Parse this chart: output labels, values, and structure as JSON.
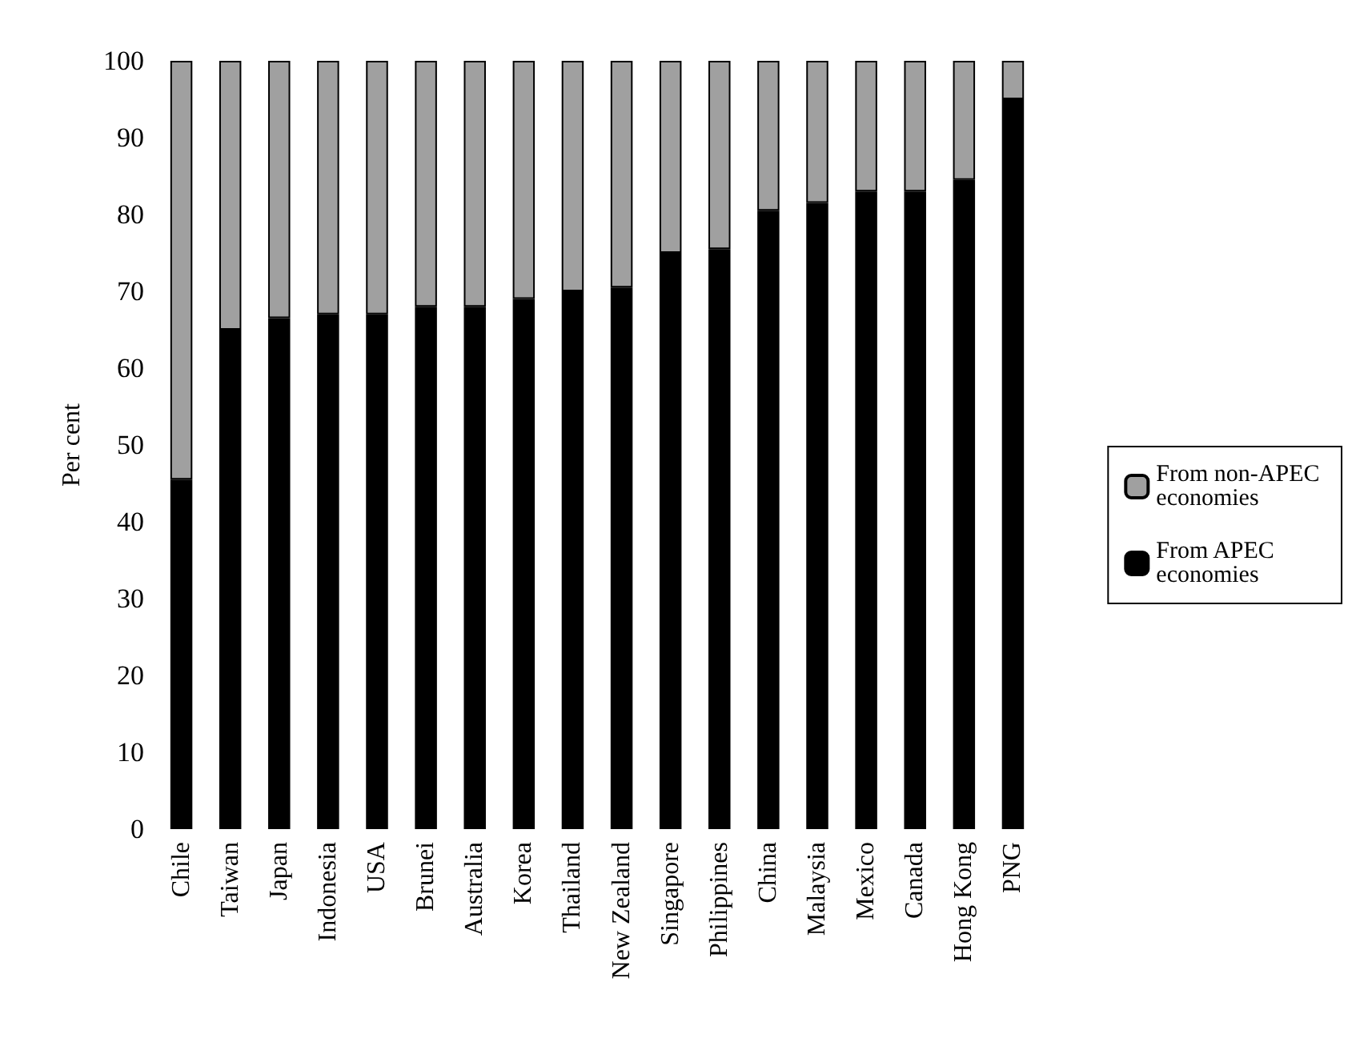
{
  "chart_data": {
    "type": "bar",
    "stacked": true,
    "ylabel": "Per cent",
    "categories": [
      "Chile",
      "Taiwan",
      "Japan",
      "Indonesia",
      "USA",
      "Brunei",
      "Australia",
      "Korea",
      "Thailand",
      "New Zealand",
      "Singapore",
      "Philippines",
      "China",
      "Malaysia",
      "Mexico",
      "Canada",
      "Hong Kong",
      "PNG"
    ],
    "series": [
      {
        "name": "From APEC economies",
        "color": "#000000",
        "values": [
          45.5,
          65,
          66.5,
          67,
          67,
          68,
          68,
          69,
          70,
          70.5,
          75,
          75.5,
          80.5,
          81.5,
          83,
          83,
          84.5,
          95
        ]
      },
      {
        "name": "From non-APEC economies",
        "color": "#a0a0a0",
        "values": [
          54.5,
          35,
          33.5,
          33,
          33,
          32,
          32,
          31,
          30,
          29.5,
          25,
          24.5,
          19.5,
          18.5,
          17,
          17,
          15.5,
          5
        ]
      }
    ],
    "ylim": [
      0,
      100
    ],
    "yticks": [
      0,
      10,
      20,
      30,
      40,
      50,
      60,
      70,
      80,
      90,
      100
    ],
    "grid": false,
    "legend": "right"
  }
}
